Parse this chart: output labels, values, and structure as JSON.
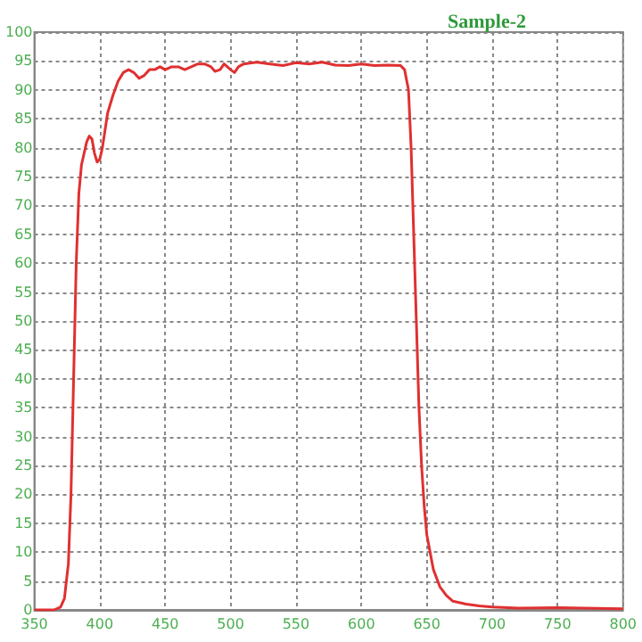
{
  "chart_data": {
    "type": "line",
    "title": "Sample-2",
    "x": [
      350,
      365,
      370,
      373,
      376,
      378,
      380,
      382,
      384,
      386,
      388,
      390,
      392,
      394,
      396,
      398,
      400,
      402,
      404,
      406,
      410,
      414,
      418,
      422,
      426,
      430,
      434,
      438,
      442,
      446,
      450,
      455,
      460,
      465,
      470,
      475,
      480,
      485,
      488,
      492,
      495,
      500,
      503,
      506,
      510,
      520,
      530,
      540,
      550,
      560,
      570,
      580,
      590,
      600,
      610,
      620,
      630,
      633,
      636,
      638,
      640,
      642,
      644,
      646,
      648,
      650,
      655,
      660,
      665,
      670,
      680,
      690,
      700,
      720,
      750,
      770,
      800
    ],
    "series": [
      {
        "color": "#e03030",
        "values": [
          0,
          0,
          0.5,
          2,
          8,
          20,
          40,
          60,
          72,
          77,
          79,
          81,
          82,
          81.5,
          79,
          77.5,
          78,
          80,
          83,
          86,
          89,
          91.5,
          93,
          93.5,
          93,
          92,
          92.5,
          93.5,
          93.5,
          94,
          93.5,
          94,
          94,
          93.5,
          94,
          94.5,
          94.5,
          94,
          93.2,
          93.5,
          94.5,
          93.5,
          93,
          94,
          94.5,
          94.8,
          94.5,
          94.2,
          94.7,
          94.5,
          94.8,
          94.3,
          94.2,
          94.5,
          94.2,
          94.3,
          94.2,
          93.5,
          90,
          80,
          65,
          50,
          35,
          25,
          18,
          13,
          7,
          4,
          2.5,
          1.5,
          1,
          0.7,
          0.5,
          0.3,
          0.4,
          0.3,
          0.2
        ]
      }
    ],
    "xlim": [
      350,
      800
    ],
    "xticks": [
      350,
      400,
      450,
      500,
      550,
      600,
      650,
      700,
      750,
      800
    ],
    "ylim": [
      0,
      100
    ],
    "yticks": [
      0,
      5,
      10,
      15,
      20,
      25,
      30,
      35,
      40,
      45,
      50,
      55,
      60,
      65,
      70,
      75,
      80,
      85,
      90,
      95,
      100
    ],
    "grid": true,
    "marker": "none",
    "line_style": "solid"
  }
}
